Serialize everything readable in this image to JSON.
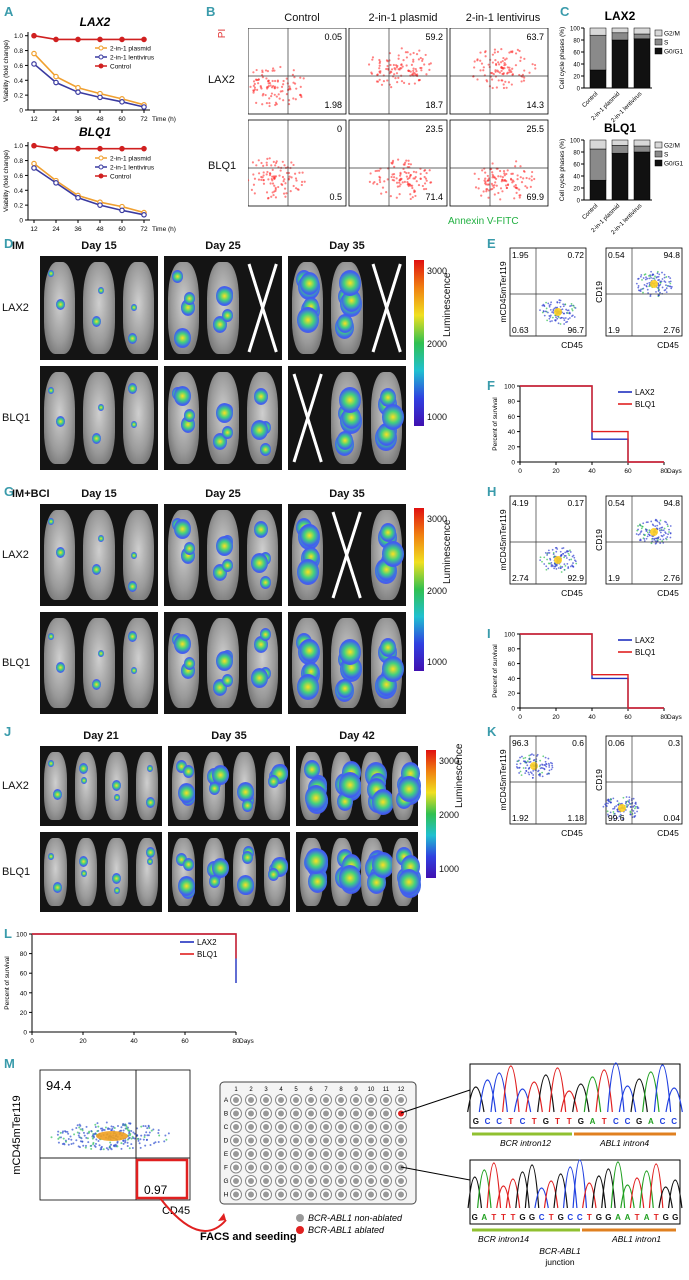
{
  "panel_labels": {
    "A": "A",
    "B": "B",
    "C": "C",
    "D": "D",
    "E": "E",
    "F": "F",
    "G": "G",
    "H": "H",
    "I": "I",
    "J": "J",
    "K": "K",
    "L": "L",
    "M": "M"
  },
  "colors": {
    "label": "#3a9bab",
    "plasmid": "#f0a030",
    "lentivirus": "#3a3aa0",
    "control": "#d02020",
    "lax2": "#2030c0",
    "blq1": "#e02020",
    "annexin": "#20b040",
    "pi": "#e03030"
  },
  "viability": {
    "ylabel": "Viability (fold change)",
    "xunit": "Time (h)",
    "xticks": [
      "12",
      "24",
      "36",
      "48",
      "60",
      "72"
    ],
    "yticks": [
      "0",
      "0.2",
      "0.4",
      "0.6",
      "0.8",
      "1.0"
    ],
    "legend": [
      "2-in-1 plasmid",
      "2-in-1 lentivirus",
      "Control"
    ]
  },
  "chart_data": [
    {
      "type": "line",
      "title": "LAX2",
      "x": [
        12,
        24,
        36,
        48,
        60,
        72
      ],
      "ylim": [
        0,
        1.05
      ],
      "series": [
        {
          "name": "2-in-1 plasmid",
          "values": [
            0.76,
            0.45,
            0.3,
            0.22,
            0.15,
            0.07
          ]
        },
        {
          "name": "2-in-1 lentivirus",
          "values": [
            0.62,
            0.37,
            0.24,
            0.17,
            0.11,
            0.04
          ]
        },
        {
          "name": "Control",
          "values": [
            1.0,
            0.95,
            0.95,
            0.95,
            0.95,
            0.95
          ]
        }
      ]
    },
    {
      "type": "line",
      "title": "BLQ1",
      "x": [
        12,
        24,
        36,
        48,
        60,
        72
      ],
      "ylim": [
        0,
        1.05
      ],
      "series": [
        {
          "name": "2-in-1 plasmid",
          "values": [
            0.76,
            0.53,
            0.33,
            0.24,
            0.18,
            0.1
          ]
        },
        {
          "name": "2-in-1 lentivirus",
          "values": [
            0.7,
            0.5,
            0.3,
            0.2,
            0.13,
            0.07
          ]
        },
        {
          "name": "Control",
          "values": [
            1.0,
            0.96,
            0.96,
            0.96,
            0.96,
            0.96
          ]
        }
      ]
    },
    {
      "type": "bar",
      "title": "LAX2",
      "categories": [
        "Control",
        "2-in-1 plasmid",
        "2-in-1 lentivirus"
      ],
      "ylim": [
        0,
        100
      ],
      "series": [
        {
          "name": "G0/G1",
          "values": [
            30,
            80,
            82
          ]
        },
        {
          "name": "S",
          "values": [
            58,
            12,
            8
          ]
        },
        {
          "name": "G2/M",
          "values": [
            12,
            8,
            10
          ]
        }
      ]
    },
    {
      "type": "bar",
      "title": "BLQ1",
      "categories": [
        "Control",
        "2-in-1 plasmid",
        "2-in-1 lentivirus"
      ],
      "ylim": [
        0,
        100
      ],
      "series": [
        {
          "name": "G0/G1",
          "values": [
            33,
            78,
            80
          ]
        },
        {
          "name": "S",
          "values": [
            52,
            13,
            10
          ]
        },
        {
          "name": "G2/M",
          "values": [
            15,
            9,
            10
          ]
        }
      ]
    },
    {
      "type": "line",
      "title": "",
      "x": [
        0,
        20,
        40,
        60,
        80
      ],
      "ylim": [
        0,
        100
      ],
      "series": [
        {
          "name": "LAX2",
          "values": [
            100,
            100,
            30,
            0,
            0
          ]
        },
        {
          "name": "BLQ1",
          "values": [
            100,
            100,
            40,
            0,
            0
          ]
        }
      ]
    },
    {
      "type": "line",
      "title": "",
      "x": [
        0,
        20,
        40,
        60,
        80
      ],
      "ylim": [
        0,
        100
      ],
      "series": [
        {
          "name": "LAX2",
          "values": [
            100,
            100,
            40,
            0,
            0
          ]
        },
        {
          "name": "BLQ1",
          "values": [
            100,
            100,
            45,
            0,
            0
          ]
        }
      ]
    },
    {
      "type": "line",
      "title": "",
      "x": [
        0,
        20,
        40,
        60,
        80
      ],
      "ylim": [
        0,
        100
      ],
      "series": [
        {
          "name": "LAX2",
          "values": [
            100,
            100,
            100,
            100,
            50
          ]
        },
        {
          "name": "BLQ1",
          "values": [
            100,
            100,
            100,
            100,
            75
          ]
        }
      ]
    }
  ],
  "cellcycle": {
    "ylabel": "Cell cycle phases (%)",
    "yticks": [
      "0",
      "20",
      "40",
      "60",
      "80",
      "100"
    ],
    "categories": [
      "Control",
      "2-in-1 plasmid",
      "2-in-1 lentivirus"
    ],
    "legend": [
      "G2/M",
      "S",
      "G0/G1"
    ]
  },
  "flow_b": {
    "columns": [
      "Control",
      "2-in-1 plasmid",
      "2-in-1 lentivirus"
    ],
    "rows": [
      "LAX2",
      "BLQ1"
    ],
    "ylabel": "PI",
    "xlabel": "Annexin V-FITC",
    "values": [
      [
        "0.05",
        "1.98"
      ],
      [
        "59.2",
        "18.7"
      ],
      [
        "63.7",
        "14.3"
      ],
      [
        "0",
        "0.5"
      ],
      [
        "23.5",
        "71.4"
      ],
      [
        "25.5",
        "69.9"
      ]
    ]
  },
  "imaging_d": {
    "group": "IM",
    "days": [
      "Day 15",
      "Day 25",
      "Day 35"
    ],
    "rows": [
      "LAX2",
      "BLQ1"
    ],
    "scale_label": "Luminescence",
    "scale_ticks": [
      "3000",
      "2000",
      "1000"
    ]
  },
  "imaging_g": {
    "group": "IM+BCI",
    "days": [
      "Day 15",
      "Day 25",
      "Day 35"
    ],
    "rows": [
      "LAX2",
      "BLQ1"
    ],
    "scale_label": "Luminescence",
    "scale_ticks": [
      "3000",
      "2000",
      "1000"
    ]
  },
  "imaging_j": {
    "days": [
      "Day 21",
      "Day 35",
      "Day 42"
    ],
    "rows": [
      "LAX2",
      "BLQ1"
    ],
    "scale_label": "Luminescence",
    "scale_ticks": [
      "3000",
      "2000",
      "1000"
    ]
  },
  "flow_e": {
    "y1": "mCD45mTer119",
    "y2": "CD19",
    "x": "CD45",
    "q1": [
      "1.95",
      "0.72",
      "0.63",
      "96.7"
    ],
    "q2": [
      "0.54",
      "94.8",
      "1.9",
      "2.76"
    ]
  },
  "flow_h": {
    "y1": "mCD45mTer119",
    "y2": "CD19",
    "x": "CD45",
    "q1": [
      "4.19",
      "0.17",
      "2.74",
      "92.9"
    ],
    "q2": [
      "0.54",
      "94.8",
      "1.9",
      "2.76"
    ]
  },
  "flow_k": {
    "y1": "mCD45mTer119",
    "y2": "CD19",
    "x": "CD45",
    "q1": [
      "96.3",
      "0.6",
      "1.92",
      "1.18"
    ],
    "q2": [
      "0.06",
      "0.3",
      "99.6",
      "0.04"
    ]
  },
  "survival": {
    "ylabel": "Percent of survival",
    "xunit": "Days",
    "xticks": [
      "0",
      "20",
      "40",
      "60",
      "80"
    ],
    "yticks": [
      "0",
      "20",
      "40",
      "60",
      "80",
      "100"
    ],
    "legend": [
      "LAX2",
      "BLQ1"
    ]
  },
  "panel_m": {
    "ylabel": "mCD45mTer119",
    "xlabel": "CD45",
    "q_top": "94.4",
    "q_bot": "0.97",
    "arrow_label": "FACS and seeding",
    "cols": [
      "1",
      "2",
      "3",
      "4",
      "5",
      "6",
      "7",
      "8",
      "9",
      "10",
      "11",
      "12"
    ],
    "rows": [
      "A",
      "B",
      "C",
      "D",
      "E",
      "F",
      "G",
      "H"
    ],
    "legend": [
      "BCR-ABL1 non-ablated",
      "BCR-ABL1 ablated"
    ],
    "seq1": "GCCTCTGTTGATCCGACC",
    "seq1_labels": [
      "BCR intron12",
      "ABL1 intron4"
    ],
    "seq2": "GATTTGGCTGCCTGGAATATGG",
    "seq2_labels": [
      "BCR intron14",
      "BCR-ABL1",
      "junction",
      "ABL1 intron1"
    ]
  }
}
